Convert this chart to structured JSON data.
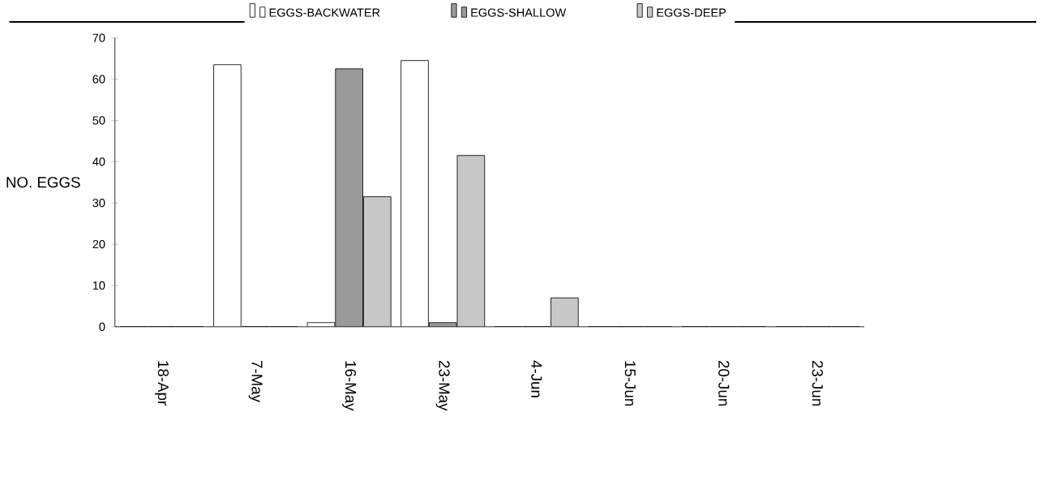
{
  "chart_data": {
    "type": "bar",
    "ylabel": "NO. EGGS",
    "categories": [
      "18-Apr",
      "7-May",
      "16-May",
      "23-May",
      "4-Jun",
      "15-Jun",
      "20-Jun",
      "23-Jun"
    ],
    "series": [
      {
        "name": "EGGS-BACKWATER",
        "color": "#ffffff",
        "values": [
          0,
          63.5,
          1,
          64.5,
          0,
          0,
          0,
          0
        ]
      },
      {
        "name": "EGGS-SHALLOW",
        "color": "#9a9a9a",
        "values": [
          0,
          0,
          62.5,
          1,
          0,
          0,
          0,
          0
        ]
      },
      {
        "name": "EGGS-DEEP",
        "color": "#c8c8c8",
        "values": [
          0,
          0,
          31.5,
          41.5,
          7,
          0,
          0,
          0
        ]
      }
    ],
    "ylim": [
      0,
      70
    ],
    "yticks": [
      0,
      10,
      20,
      30,
      40,
      50,
      60,
      70
    ],
    "grid": false,
    "legend": "top"
  }
}
